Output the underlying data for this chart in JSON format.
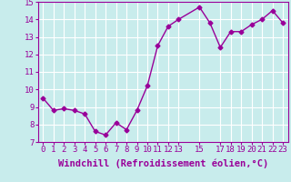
{
  "x": [
    0,
    1,
    2,
    3,
    4,
    5,
    6,
    7,
    8,
    9,
    10,
    11,
    12,
    13,
    15,
    16,
    17,
    18,
    19,
    20,
    21,
    22,
    23
  ],
  "y": [
    9.5,
    8.8,
    8.9,
    8.8,
    8.6,
    7.6,
    7.4,
    8.1,
    7.7,
    8.8,
    10.2,
    12.5,
    13.6,
    14.0,
    14.7,
    13.8,
    12.4,
    13.3,
    13.3,
    13.7,
    14.0,
    14.5,
    13.8
  ],
  "line_color": "#990099",
  "marker": "D",
  "marker_size": 2.5,
  "bg_color": "#c8ecec",
  "grid_color": "#ffffff",
  "xlabel": "Windchill (Refroidissement éolien,°C)",
  "ylim": [
    7,
    15
  ],
  "xlim": [
    -0.5,
    23.5
  ],
  "yticks": [
    7,
    8,
    9,
    10,
    11,
    12,
    13,
    14,
    15
  ],
  "xticks": [
    0,
    1,
    2,
    3,
    4,
    5,
    6,
    7,
    8,
    9,
    10,
    11,
    12,
    13,
    15,
    17,
    18,
    19,
    20,
    21,
    22,
    23
  ],
  "tick_label_size": 6.5,
  "xlabel_size": 7.5,
  "border_color": "#990099",
  "linewidth": 1.0
}
